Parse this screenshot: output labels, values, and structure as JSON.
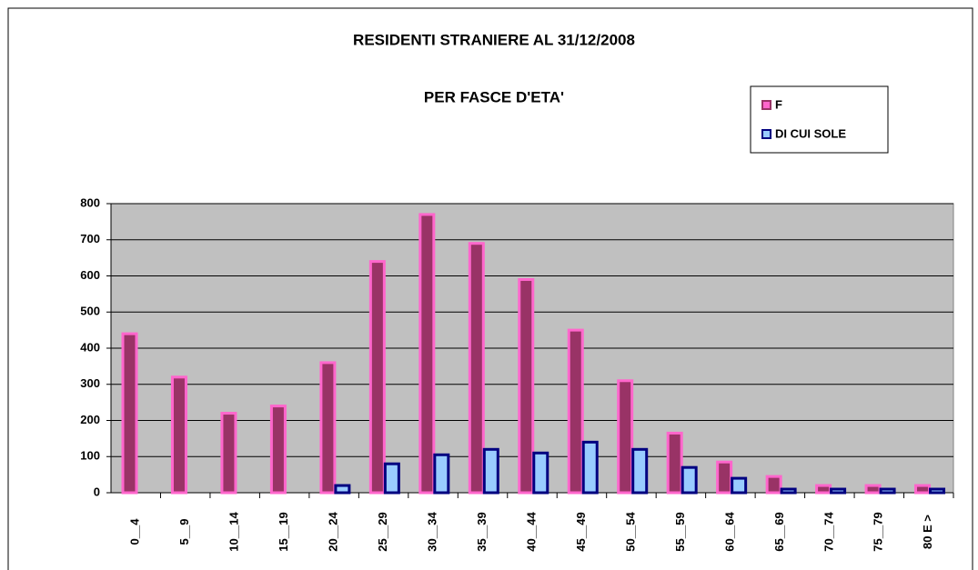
{
  "chart_data": {
    "type": "bar",
    "title": "RESIDENTI STRANIERE AL 31/12/2008",
    "subtitle": "PER FASCE D'ETA'",
    "categories": [
      "0__4",
      "5__9",
      "10__14",
      "15__19",
      "20__24",
      "25__29",
      "30__34",
      "35__39",
      "40__44",
      "45__49",
      "50__54",
      "55__59",
      "60__64",
      "65__69",
      "70__74",
      "75__79",
      "80 E >"
    ],
    "series": [
      {
        "name": "F",
        "color": "#ff66cc",
        "values": [
          440,
          320,
          220,
          240,
          360,
          640,
          770,
          690,
          590,
          450,
          310,
          165,
          85,
          45,
          20,
          20,
          20
        ]
      },
      {
        "name": "DI CUI SOLE",
        "color": "#000080",
        "values": [
          0,
          0,
          0,
          0,
          20,
          80,
          105,
          120,
          110,
          140,
          120,
          70,
          40,
          10,
          10,
          10,
          10
        ]
      }
    ],
    "ylim": [
      0,
      800
    ],
    "yticks": [
      0,
      100,
      200,
      300,
      400,
      500,
      600,
      700,
      800
    ],
    "grid": true,
    "legend": "top-right"
  }
}
